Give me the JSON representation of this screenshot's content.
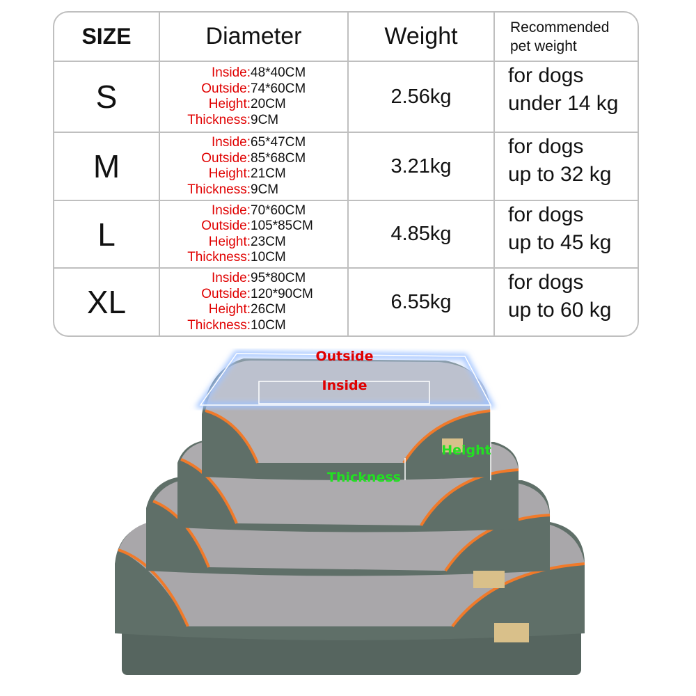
{
  "table": {
    "headers": {
      "size": "SIZE",
      "diameter": "Diameter",
      "weight": "Weight",
      "recommended_line1": "Recommended",
      "recommended_line2": "pet weight"
    },
    "labels": {
      "inside": "Inside:",
      "outside": "Outside:",
      "height": "Height:",
      "thickness": "Thickness:"
    },
    "rows": [
      {
        "size": "S",
        "inside": "48*40CM",
        "outside": "74*60CM",
        "height": "20CM",
        "thickness": "9CM",
        "weight": "2.56kg",
        "rec1": "for dogs",
        "rec2": "under 14 kg"
      },
      {
        "size": "M",
        "inside": "65*47CM",
        "outside": "85*68CM",
        "height": "21CM",
        "thickness": "9CM",
        "weight": "3.21kg",
        "rec1": "for dogs",
        "rec2": "up to 32 kg"
      },
      {
        "size": "L",
        "inside": "70*60CM",
        "outside": "105*85CM",
        "height": "23CM",
        "thickness": "10CM",
        "weight": "4.85kg",
        "rec1": "for dogs",
        "rec2": "up to 45 kg"
      },
      {
        "size": "XL",
        "inside": "95*80CM",
        "outside": "120*90CM",
        "height": "26CM",
        "thickness": "10CM",
        "weight": "6.55kg",
        "rec1": "for dogs",
        "rec2": "up to 60 kg"
      }
    ]
  },
  "photo": {
    "labels": {
      "outside": "Outside",
      "inside": "Inside",
      "height": "Height",
      "thickness": "Thickness"
    },
    "colors": {
      "bed_base": "#5f6f68",
      "fleece": "#a9a7aa",
      "piping": "#f07a2a",
      "outline": "#bcd4ff",
      "red_label": "#e00000",
      "green_label": "#22e022"
    }
  }
}
